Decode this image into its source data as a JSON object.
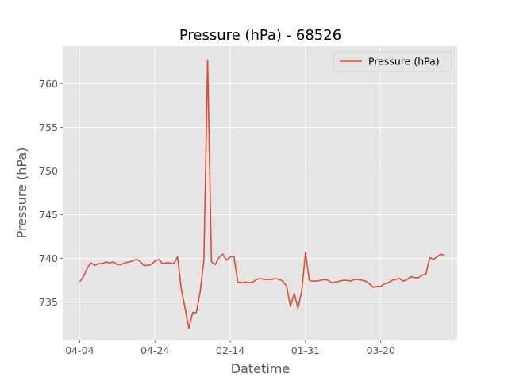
{
  "chart_data": {
    "type": "line",
    "title": "Pressure (hPa) - 68526",
    "xlabel": "Datetime",
    "ylabel": "Pressure (hPa)",
    "legend": {
      "placement": "top-right",
      "entries": [
        "Pressure (hPa)"
      ]
    },
    "grid": true,
    "xlim": [
      -4.3,
      100.3
    ],
    "ylim": [
      730.7,
      764.3
    ],
    "x_ticks": [
      {
        "x": 0,
        "label": "04-04"
      },
      {
        "x": 20,
        "label": "04-24"
      },
      {
        "x": 40,
        "label": "02-14"
      },
      {
        "x": 60,
        "label": "01-31"
      },
      {
        "x": 80,
        "label": "03-20"
      },
      {
        "x": 100,
        "label": ""
      }
    ],
    "y_ticks": [
      {
        "y": 735,
        "label": "735"
      },
      {
        "y": 740,
        "label": "740"
      },
      {
        "y": 745,
        "label": "745"
      },
      {
        "y": 750,
        "label": "750"
      },
      {
        "y": 755,
        "label": "755"
      },
      {
        "y": 760,
        "label": "760"
      }
    ],
    "series": [
      {
        "name": "Pressure (hPa)",
        "color": "#E24A33",
        "x": [
          0,
          1,
          2,
          3,
          4,
          5,
          6,
          7,
          8,
          9,
          10,
          11,
          12,
          13,
          14,
          15,
          16,
          17,
          18,
          19,
          20,
          21,
          22,
          23,
          24,
          25,
          26,
          27,
          28,
          29,
          30,
          31,
          32,
          33,
          34,
          35,
          36,
          37,
          38,
          39,
          40,
          41,
          42,
          43,
          44,
          45,
          46,
          47,
          48,
          49,
          50,
          51,
          52,
          53,
          54,
          55,
          56,
          57,
          58,
          59,
          60,
          61,
          62,
          63,
          64,
          65,
          66,
          67,
          68,
          69,
          70,
          71,
          72,
          73,
          74,
          75,
          76,
          77,
          78,
          79,
          80,
          81,
          82,
          83,
          84,
          85,
          86,
          87,
          88,
          89,
          90,
          91,
          92,
          93,
          94,
          95,
          96,
          97
        ],
        "y": [
          737.3,
          737.9,
          738.9,
          739.5,
          739.2,
          739.4,
          739.4,
          739.6,
          739.5,
          739.6,
          739.3,
          739.3,
          739.5,
          739.6,
          739.7,
          739.9,
          739.7,
          739.2,
          739.2,
          739.3,
          739.7,
          739.9,
          739.4,
          739.5,
          739.5,
          739.4,
          740.2,
          736.5,
          734.3,
          732.0,
          733.8,
          733.8,
          736.2,
          739.8,
          762.7,
          739.6,
          739.3,
          740.1,
          740.5,
          739.8,
          740.2,
          740.2,
          737.3,
          737.2,
          737.3,
          737.2,
          737.3,
          737.6,
          737.7,
          737.6,
          737.6,
          737.6,
          737.7,
          737.6,
          737.4,
          736.8,
          734.5,
          736.0,
          734.3,
          736.3,
          740.7,
          737.5,
          737.4,
          737.4,
          737.5,
          737.6,
          737.5,
          737.2,
          737.3,
          737.4,
          737.5,
          737.5,
          737.4,
          737.6,
          737.6,
          737.5,
          737.4,
          737.1,
          736.7,
          736.8,
          736.8,
          737.1,
          737.2,
          737.5,
          737.6,
          737.7,
          737.4,
          737.6,
          737.9,
          737.8,
          737.8,
          738.1,
          738.2,
          740.1,
          739.9,
          740.2,
          740.5,
          740.3
        ]
      }
    ]
  }
}
